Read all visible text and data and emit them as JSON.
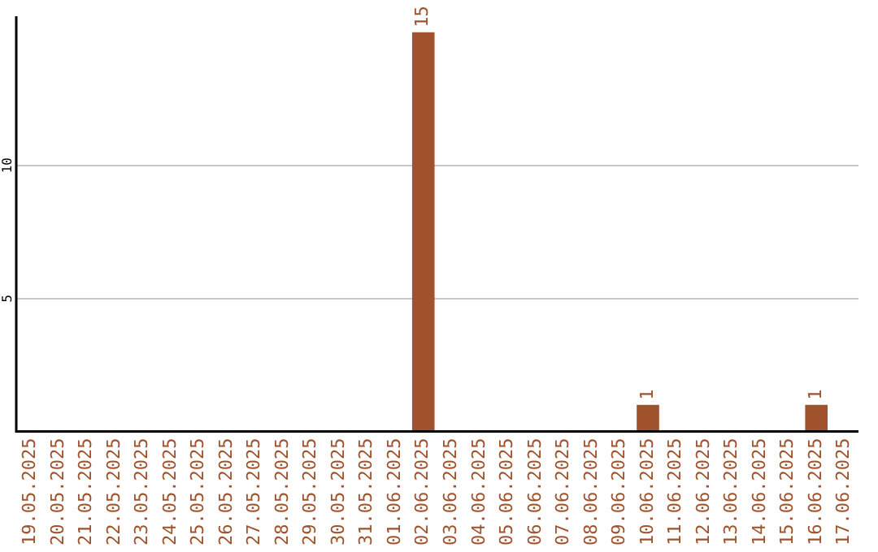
{
  "chart_data": {
    "type": "bar",
    "categories": [
      "19.05.2025",
      "20.05.2025",
      "21.05.2025",
      "22.05.2025",
      "23.05.2025",
      "24.05.2025",
      "25.05.2025",
      "26.05.2025",
      "27.05.2025",
      "28.05.2025",
      "29.05.2025",
      "30.05.2025",
      "31.05.2025",
      "01.06.2025",
      "02.06.2025",
      "03.06.2025",
      "04.06.2025",
      "05.06.2025",
      "06.06.2025",
      "07.06.2025",
      "08.06.2025",
      "09.06.2025",
      "10.06.2025",
      "11.06.2025",
      "12.06.2025",
      "13.06.2025",
      "14.06.2025",
      "15.06.2025",
      "16.06.2025",
      "17.06.2025"
    ],
    "values": [
      0,
      0,
      0,
      0,
      0,
      0,
      0,
      0,
      0,
      0,
      0,
      0,
      0,
      0,
      15,
      0,
      0,
      0,
      0,
      0,
      0,
      0,
      1,
      0,
      0,
      0,
      0,
      0,
      1,
      0
    ],
    "value_labels": [
      null,
      null,
      null,
      null,
      null,
      null,
      null,
      null,
      null,
      null,
      null,
      null,
      null,
      null,
      "15",
      null,
      null,
      null,
      null,
      null,
      null,
      null,
      "1",
      null,
      null,
      null,
      null,
      null,
      "1",
      null
    ],
    "color": "#a0522d",
    "ylim": [
      0,
      15.6
    ],
    "yticks": [
      5,
      10
    ],
    "grid": "y",
    "legend": false
  }
}
